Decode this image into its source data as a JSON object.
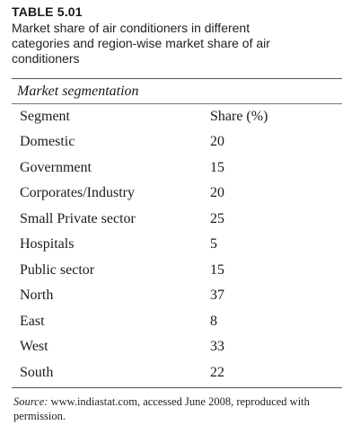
{
  "table_label": "TABLE 5.01",
  "caption": "Market share of air conditioners in different categories and region-wise market share of air conditioners",
  "section_heading": "Market segmentation",
  "columns": [
    "Segment",
    "Share (%)"
  ],
  "rows": [
    {
      "segment": "Domestic",
      "share": "20"
    },
    {
      "segment": "Government",
      "share": "15"
    },
    {
      "segment": "Corporates/Industry",
      "share": "20"
    },
    {
      "segment": "Small Private sector",
      "share": "25"
    },
    {
      "segment": "Hospitals",
      "share": "5"
    },
    {
      "segment": "Public sector",
      "share": "15"
    },
    {
      "segment": "North",
      "share": "37"
    },
    {
      "segment": "East",
      "share": "8"
    },
    {
      "segment": "West",
      "share": "33"
    },
    {
      "segment": "South",
      "share": "22"
    }
  ],
  "source_label": "Source:",
  "source_text": " www.indiastat.com, accessed June 2008, reproduced with permission."
}
